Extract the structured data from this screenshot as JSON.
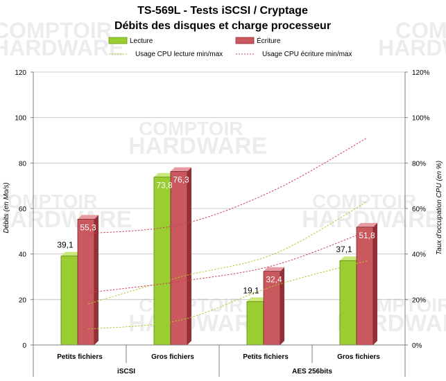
{
  "watermark": {
    "line1": "COMPTOIR",
    "line2": "HARDWARE"
  },
  "chart_data": {
    "type": "bar",
    "title": "TS-569L - Tests iSCSI / Cryptage",
    "subtitle": "Débits des disques et charge processeur",
    "categories": [
      "Petits fichiers",
      "Gros fichiers",
      "Petits fichiers",
      "Gros fichiers"
    ],
    "groups": [
      {
        "label": "iSCSI",
        "span": [
          0,
          1
        ]
      },
      {
        "label": "AES 256bits",
        "span": [
          2,
          3
        ]
      }
    ],
    "series": [
      {
        "name": "Lecture",
        "color": "#9acd32",
        "values": [
          39.1,
          73.8,
          19.1,
          37.1
        ],
        "labels": [
          "39,1",
          "73,8",
          "19,1",
          "37,1"
        ]
      },
      {
        "name": "Écriture",
        "color": "#c9595f",
        "values": [
          55.3,
          76.3,
          32.4,
          51.8
        ],
        "labels": [
          "55,3",
          "76,3",
          "32,4",
          "51,8"
        ]
      }
    ],
    "cpu_lines": [
      {
        "name": "Usage CPU lecture min/max",
        "color": "#b5c830",
        "style": "dashed",
        "min": [
          7,
          11,
          26,
          37
        ],
        "max": [
          18,
          30,
          40,
          63
        ]
      },
      {
        "name": "Usage CPU écriture min/max",
        "color": "#c94050",
        "style": "dashed",
        "min": [
          23,
          28,
          35,
          50
        ],
        "max": [
          49,
          53,
          68,
          91
        ]
      }
    ],
    "ylabel": "Débits (en Mo/s)",
    "y2label": "Taux d'occupation CPU (en %)",
    "ylim": [
      0,
      120
    ],
    "yticks": [
      0,
      20,
      40,
      60,
      80,
      100,
      120
    ],
    "y2lim": [
      0,
      120
    ],
    "y2ticks": [
      "0%",
      "20%",
      "40%",
      "60%",
      "80%",
      "100%",
      "120%"
    ],
    "grid": true,
    "legend_position": "top"
  }
}
